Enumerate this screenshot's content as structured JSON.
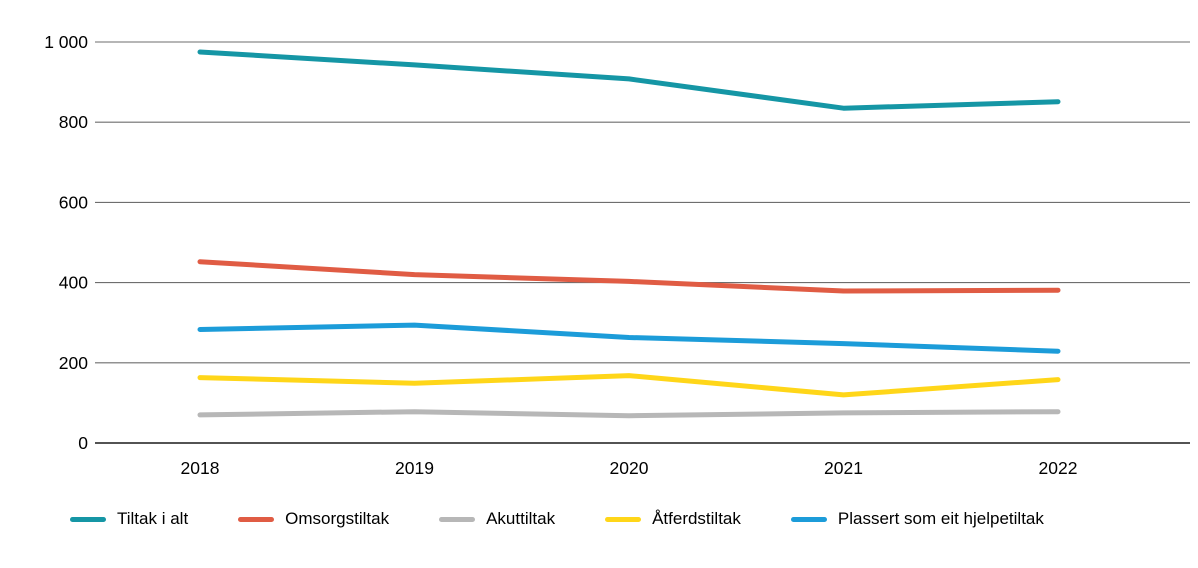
{
  "chart_data": {
    "type": "line",
    "title": "",
    "xlabel": "",
    "ylabel": "",
    "x": [
      "2018",
      "2019",
      "2020",
      "2021",
      "2022"
    ],
    "series": [
      {
        "name": "Tiltak i alt",
        "color": "#1596A5",
        "values": [
          975,
          943,
          908,
          835,
          851
        ]
      },
      {
        "name": "Omsorgstiltak",
        "color": "#E05C44",
        "values": [
          452,
          420,
          403,
          379,
          381
        ]
      },
      {
        "name": "Akuttiltak",
        "color": "#B7B7B7",
        "values": [
          70,
          78,
          68,
          75,
          78
        ]
      },
      {
        "name": "Åtferdstiltak",
        "color": "#FFD619",
        "values": [
          163,
          149,
          168,
          120,
          158
        ]
      },
      {
        "name": "Plassert som eit hjelpetiltak",
        "color": "#1C9CD9",
        "values": [
          283,
          294,
          263,
          248,
          229
        ]
      }
    ],
    "ylim": [
      0,
      1000
    ],
    "y_ticks": [
      0,
      200,
      400,
      600,
      800,
      1000
    ],
    "y_tick_labels": [
      "0",
      "200",
      "400",
      "600",
      "800",
      "1 000"
    ],
    "grid": true,
    "gridline_color": "#6E6E6E",
    "zero_line_color": "#1A1A1A",
    "legend_position": "bottom"
  }
}
